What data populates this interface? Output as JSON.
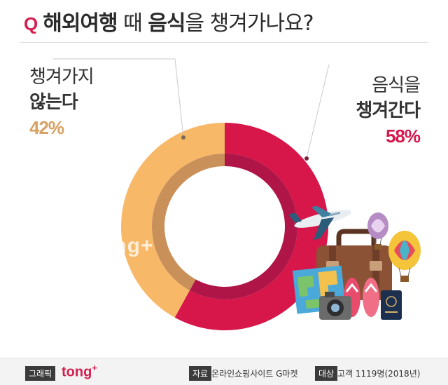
{
  "header": {
    "q_mark": "Q",
    "title_a": "해외여행",
    "title_b": " 때 ",
    "title_c": "음식",
    "title_d": "을 챙겨가나요?"
  },
  "labels": {
    "no_line1": "챙겨가지",
    "no_line2": "않는다",
    "no_pct": "42%",
    "yes_line1": "음식을",
    "yes_line2": "챙겨간다",
    "yes_pct": "58%"
  },
  "watermark": "tong+",
  "footer": {
    "graphic_badge": "그래픽",
    "brand": "tong",
    "brand_plus": "+",
    "source_badge": "자료",
    "source_text": "온라인쇼핑사이트 G마켓",
    "target_badge": "대상",
    "target_text": "고객 1119명(2018년)"
  },
  "colors": {
    "yes": "#d7164a",
    "yes_inner": "#b01547",
    "no": "#f7b867",
    "no_inner": "#c9905a",
    "accent": "#d31f4f"
  },
  "icons": [
    "airplane-icon",
    "suitcase-icon",
    "hot-air-balloon-icon",
    "map-icon",
    "camera-icon",
    "flip-flops-icon",
    "passport-icon"
  ],
  "chart_data": {
    "type": "pie",
    "categories": [
      "음식을 챙겨간다",
      "챙겨가지 않는다"
    ],
    "values": [
      58,
      42
    ],
    "title": "해외여행 때 음식을 챙겨가나요?"
  }
}
